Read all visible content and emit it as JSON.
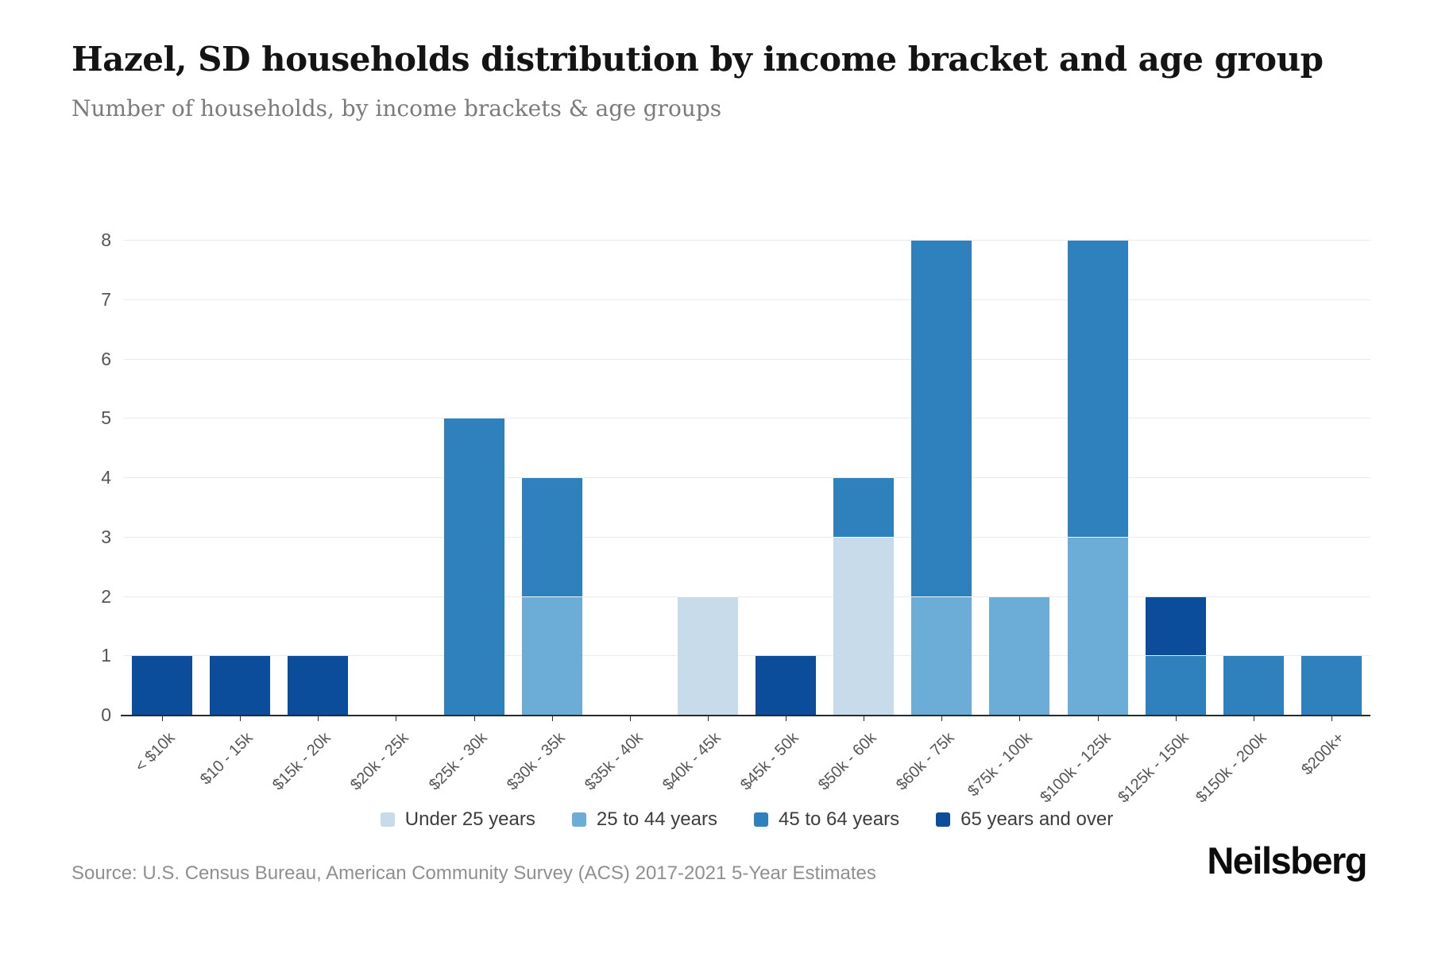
{
  "header": {
    "title": "Hazel, SD households distribution by income bracket and age group",
    "subtitle": "Number of households, by income brackets & age groups"
  },
  "chart_data": {
    "type": "bar",
    "stacked": true,
    "title": "Hazel, SD households distribution by income bracket and age group",
    "subtitle": "Number of households, by income brackets & age groups",
    "categories": [
      "< $10k",
      "$10 - 15k",
      "$15k - 20k",
      "$20k - 25k",
      "$25k - 30k",
      "$30k - 35k",
      "$35k - 40k",
      "$40k - 45k",
      "$45k - 50k",
      "$50k - 60k",
      "$60k - 75k",
      "$75k - 100k",
      "$100k - 125k",
      "$125k - 150k",
      "$150k - 200k",
      "$200k+"
    ],
    "series": [
      {
        "name": "Under 25 years",
        "color": "#C8DBEB",
        "values": [
          0,
          0,
          0,
          0,
          0,
          0,
          0,
          2,
          0,
          3,
          0,
          0,
          0,
          0,
          0,
          0
        ]
      },
      {
        "name": "25 to 44 years",
        "color": "#6CADD8",
        "values": [
          0,
          0,
          0,
          0,
          0,
          2,
          0,
          0,
          0,
          0,
          2,
          2,
          3,
          0,
          0,
          0
        ]
      },
      {
        "name": "45 to 64 years",
        "color": "#2F81BD",
        "values": [
          0,
          0,
          0,
          0,
          5,
          2,
          0,
          0,
          0,
          1,
          6,
          0,
          5,
          1,
          1,
          1
        ]
      },
      {
        "name": "65 years and over",
        "color": "#0B4D9B",
        "values": [
          1,
          1,
          1,
          0,
          0,
          0,
          0,
          0,
          1,
          0,
          0,
          0,
          0,
          1,
          0,
          0
        ]
      }
    ],
    "xlabel": "",
    "ylabel": "",
    "ylim": [
      0,
      8
    ],
    "yticks": [
      0,
      1,
      2,
      3,
      4,
      5,
      6,
      7,
      8
    ],
    "grid": true,
    "legend_position": "bottom",
    "gridline_color": "#ebebeb",
    "axis_color": "#2b2b2b"
  },
  "footer": {
    "source": "Source: U.S. Census Bureau, American Community Survey (ACS) 2017-2021 5-Year Estimates",
    "logo": "Neilsberg"
  }
}
